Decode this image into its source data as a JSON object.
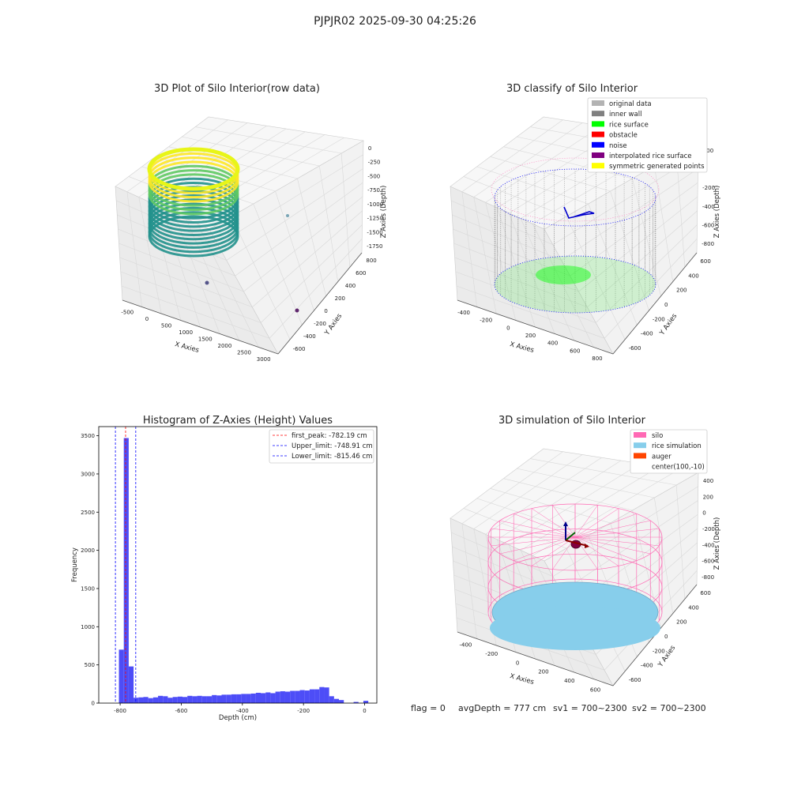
{
  "suptitle": "PJPJR02 2025-09-30 04:25:26",
  "panel1": {
    "title": "3D Plot of Silo Interior(row data)",
    "xlabel": "X Axies",
    "ylabel": "Y Axies",
    "zlabel": "Z Axies (Depth)",
    "xticks": [
      "-500",
      "0",
      "500",
      "1000",
      "1500",
      "2000",
      "2500",
      "3000"
    ],
    "yticks": [
      "-600",
      "-400",
      "-200",
      "0",
      "200",
      "400",
      "600",
      "800"
    ],
    "zticks": [
      "0",
      "-250",
      "-500",
      "-750",
      "-1000",
      "-1250",
      "-1500",
      "-1750"
    ]
  },
  "panel2": {
    "title": "3D classify of Silo Interior",
    "xlabel": "X Axies",
    "ylabel": "Y Axies",
    "zlabel": "Z Axies (Depth)",
    "xticks": [
      "-400",
      "-200",
      "0",
      "200",
      "400",
      "600",
      "800"
    ],
    "yticks": [
      "-600",
      "-400",
      "-200",
      "0",
      "200",
      "400",
      "600"
    ],
    "zticks": [
      "200",
      "0",
      "-200",
      "-400",
      "-600",
      "-800"
    ],
    "legend": [
      {
        "label": "original data",
        "color": "#b3b3b3"
      },
      {
        "label": "inner wall",
        "color": "#808080"
      },
      {
        "label": "rice surface",
        "color": "#00ff00"
      },
      {
        "label": "obstacle",
        "color": "#ff0000"
      },
      {
        "label": "noise",
        "color": "#0000ff"
      },
      {
        "label": "interpolated rice surface",
        "color": "#800080"
      },
      {
        "label": "symmetric generated points",
        "color": "#ffff00"
      }
    ]
  },
  "panel4": {
    "title": "3D simulation of Silo Interior",
    "xlabel": "X Axies",
    "ylabel": "Y Axies",
    "zlabel": "Z Axies (Depth)",
    "xticks": [
      "-400",
      "-200",
      "0",
      "200",
      "400",
      "600"
    ],
    "yticks": [
      "-600",
      "-400",
      "-200",
      "0",
      "200",
      "400",
      "600"
    ],
    "zticks": [
      "400",
      "200",
      "0",
      "-200",
      "-400",
      "-600",
      "-800"
    ],
    "legend": [
      {
        "label": "silo",
        "color": "#ff69b4"
      },
      {
        "label": "rice simulation",
        "color": "#87ceeb"
      },
      {
        "label": "auger",
        "color": "#ff4500"
      },
      {
        "label": "center(100,-10)",
        "color": ""
      }
    ]
  },
  "status": {
    "flag": "flag = 0",
    "avg_depth": "avgDepth = 777 cm",
    "sv1": "sv1 = 700~2300",
    "sv2": "sv2 = 700~2300"
  },
  "chart_data": [
    {
      "type": "scatter",
      "title": "3D Plot of Silo Interior(row data)",
      "xlabel": "X Axies",
      "ylabel": "Y Axies",
      "zlabel": "Z Axies (Depth)",
      "xlim": [
        -600,
        3200
      ],
      "ylim": [
        -650,
        850
      ],
      "zlim": [
        -1800,
        100
      ]
    },
    {
      "type": "scatter",
      "title": "3D classify of Silo Interior",
      "xlabel": "X Axies",
      "ylabel": "Y Axies",
      "zlabel": "Z Axies (Depth)",
      "legend_position": "top-right"
    },
    {
      "type": "bar",
      "title": "Histogram of Z-Axies (Height) Values",
      "xlabel": "Depth (cm)",
      "ylabel": "Frequency",
      "xlim": [
        -870,
        40
      ],
      "ylim": [
        0,
        3620
      ],
      "xticks": [
        "-800",
        "-600",
        "-400",
        "-200",
        "0"
      ],
      "yticks": [
        "0",
        "500",
        "1000",
        "1500",
        "2000",
        "2500",
        "3000",
        "3500"
      ],
      "legend_position": "top-right",
      "bins": [
        {
          "x0": -820,
          "x1": -804,
          "count": 0
        },
        {
          "x0": -804,
          "x1": -788,
          "count": 700
        },
        {
          "x0": -788,
          "x1": -772,
          "count": 3470
        },
        {
          "x0": -772,
          "x1": -756,
          "count": 480
        },
        {
          "x0": -756,
          "x1": -740,
          "count": 70
        },
        {
          "x0": -740,
          "x1": -724,
          "count": 75
        },
        {
          "x0": -724,
          "x1": -708,
          "count": 80
        },
        {
          "x0": -708,
          "x1": -692,
          "count": 65
        },
        {
          "x0": -692,
          "x1": -676,
          "count": 75
        },
        {
          "x0": -676,
          "x1": -660,
          "count": 95
        },
        {
          "x0": -660,
          "x1": -644,
          "count": 90
        },
        {
          "x0": -644,
          "x1": -628,
          "count": 70
        },
        {
          "x0": -628,
          "x1": -612,
          "count": 80
        },
        {
          "x0": -612,
          "x1": -596,
          "count": 85
        },
        {
          "x0": -596,
          "x1": -580,
          "count": 80
        },
        {
          "x0": -580,
          "x1": -564,
          "count": 95
        },
        {
          "x0": -564,
          "x1": -548,
          "count": 90
        },
        {
          "x0": -548,
          "x1": -532,
          "count": 95
        },
        {
          "x0": -532,
          "x1": -516,
          "count": 90
        },
        {
          "x0": -516,
          "x1": -500,
          "count": 90
        },
        {
          "x0": -500,
          "x1": -484,
          "count": 105
        },
        {
          "x0": -484,
          "x1": -468,
          "count": 100
        },
        {
          "x0": -468,
          "x1": -452,
          "count": 110
        },
        {
          "x0": -452,
          "x1": -436,
          "count": 110
        },
        {
          "x0": -436,
          "x1": -420,
          "count": 115
        },
        {
          "x0": -420,
          "x1": -404,
          "count": 115
        },
        {
          "x0": -404,
          "x1": -388,
          "count": 120
        },
        {
          "x0": -388,
          "x1": -372,
          "count": 120
        },
        {
          "x0": -372,
          "x1": -356,
          "count": 125
        },
        {
          "x0": -356,
          "x1": -340,
          "count": 135
        },
        {
          "x0": -340,
          "x1": -324,
          "count": 130
        },
        {
          "x0": -324,
          "x1": -308,
          "count": 140
        },
        {
          "x0": -308,
          "x1": -292,
          "count": 130
        },
        {
          "x0": -292,
          "x1": -276,
          "count": 150
        },
        {
          "x0": -276,
          "x1": -260,
          "count": 155
        },
        {
          "x0": -260,
          "x1": -244,
          "count": 150
        },
        {
          "x0": -244,
          "x1": -228,
          "count": 160
        },
        {
          "x0": -228,
          "x1": -212,
          "count": 160
        },
        {
          "x0": -212,
          "x1": -196,
          "count": 170
        },
        {
          "x0": -196,
          "x1": -180,
          "count": 165
        },
        {
          "x0": -180,
          "x1": -164,
          "count": 180
        },
        {
          "x0": -164,
          "x1": -148,
          "count": 180
        },
        {
          "x0": -148,
          "x1": -132,
          "count": 210
        },
        {
          "x0": -132,
          "x1": -116,
          "count": 205
        },
        {
          "x0": -116,
          "x1": -100,
          "count": 90
        },
        {
          "x0": -100,
          "x1": -84,
          "count": 55
        },
        {
          "x0": -84,
          "x1": -68,
          "count": 40
        },
        {
          "x0": -68,
          "x1": -52,
          "count": 0
        },
        {
          "x0": -52,
          "x1": -36,
          "count": 0
        },
        {
          "x0": -36,
          "x1": -20,
          "count": 15
        },
        {
          "x0": -20,
          "x1": -4,
          "count": 0
        },
        {
          "x0": -4,
          "x1": 12,
          "count": 30
        }
      ],
      "bar_color": "#4d4df7",
      "lines": [
        {
          "label": "first_peak: -782.19 cm",
          "x": -782.19,
          "color": "#ff0000"
        },
        {
          "label": "Upper_limit: -748.91 cm",
          "x": -748.91,
          "color": "#0000ff"
        },
        {
          "label": "Lower_limit: -815.46 cm",
          "x": -815.46,
          "color": "#0000ff"
        }
      ]
    },
    {
      "type": "scatter",
      "title": "3D simulation of Silo Interior",
      "xlabel": "X Axies",
      "ylabel": "Y Axies",
      "zlabel": "Z Axies (Depth)",
      "legend_position": "top-right"
    }
  ]
}
